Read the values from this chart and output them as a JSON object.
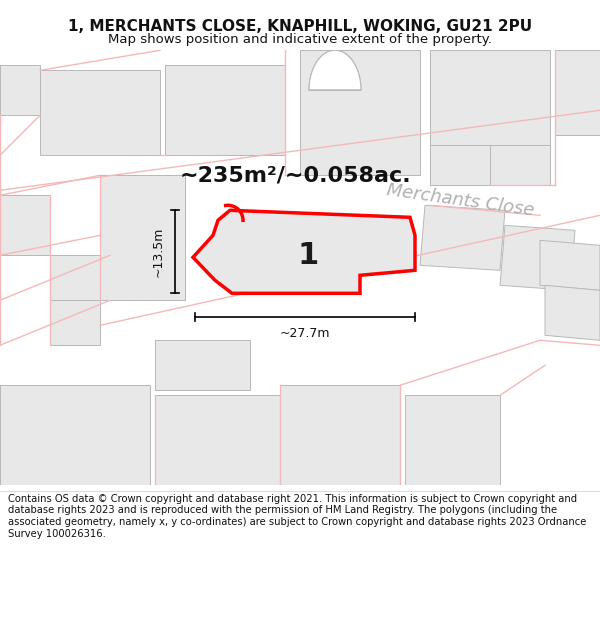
{
  "title_line1": "1, MERCHANTS CLOSE, KNAPHILL, WOKING, GU21 2PU",
  "title_line2": "Map shows position and indicative extent of the property.",
  "footer_text": "Contains OS data © Crown copyright and database right 2021. This information is subject to Crown copyright and database rights 2023 and is reproduced with the permission of HM Land Registry. The polygons (including the associated geometry, namely x, y co-ordinates) are subject to Crown copyright and database rights 2023 Ordnance Survey 100026316.",
  "area_label": "~235m²/~0.058ac.",
  "street_label": "Merchants Close",
  "plot_number": "1",
  "width_label": "~27.7m",
  "height_label": "~13.5m",
  "bg_color": "#ffffff",
  "bldg_fill": "#e8e8e8",
  "bldg_edge": "#b8b8b8",
  "plot_fill": "#e8e8e8",
  "plot_edge": "#ff0000",
  "road_outline": "#f5b8b8",
  "street_color": "#b0b0b0",
  "title_fontsize": 11,
  "subtitle_fontsize": 9.5,
  "footer_fontsize": 7.2,
  "area_fontsize": 16,
  "street_fontsize": 13
}
